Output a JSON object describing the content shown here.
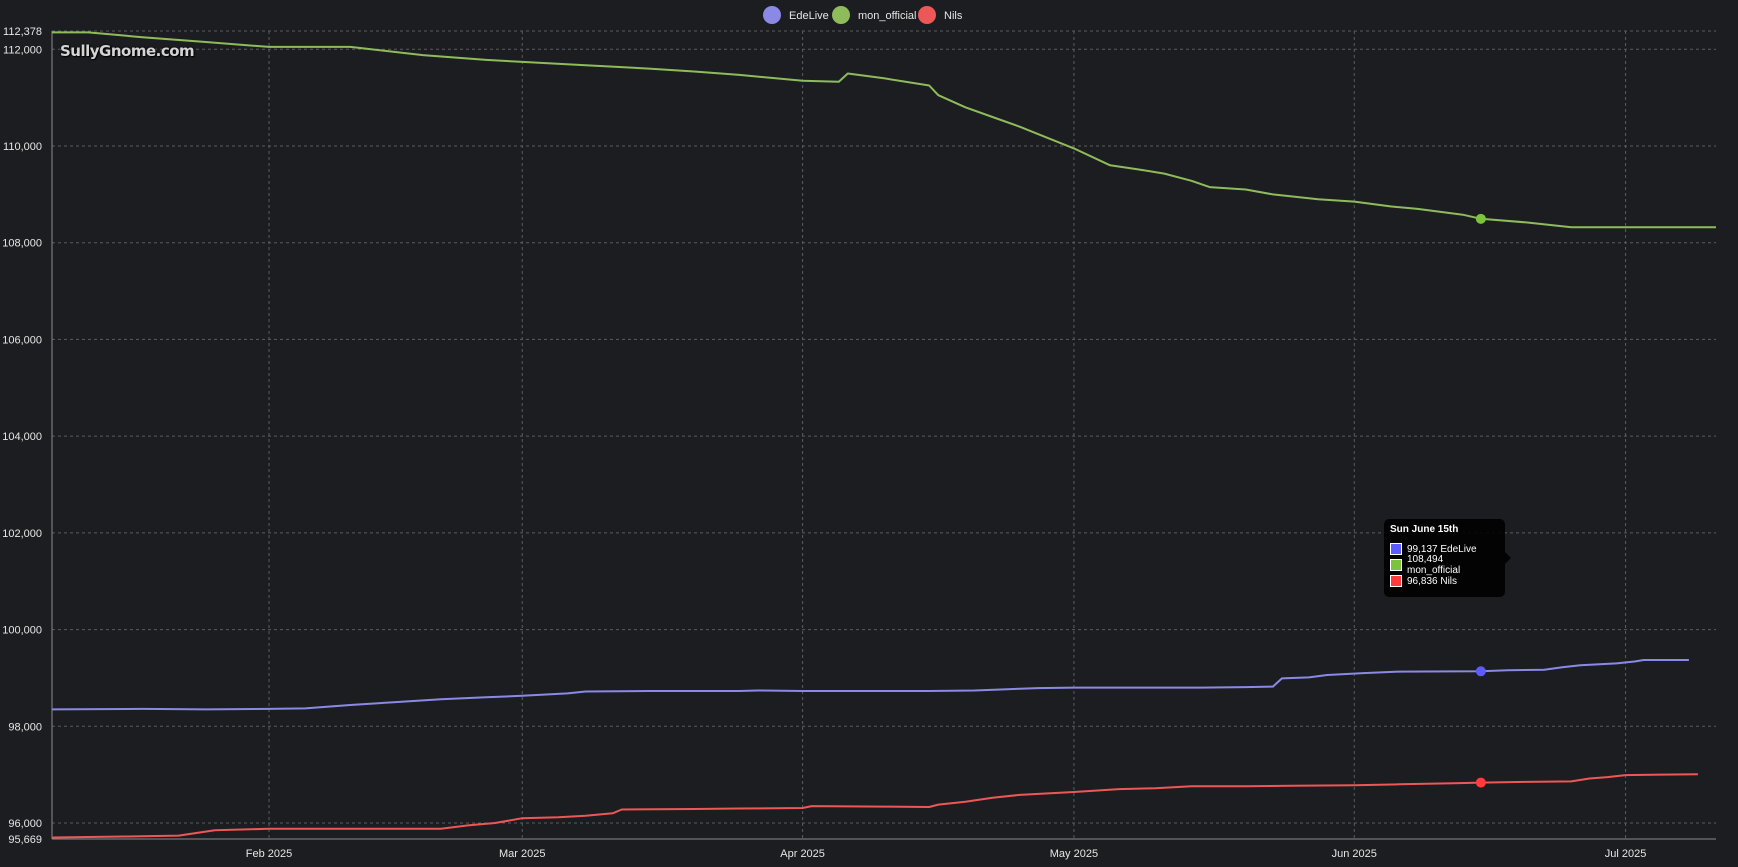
{
  "watermark": "SullyGnome.com",
  "legend": [
    {
      "label": "EdeLive",
      "color": "#8a8ae6"
    },
    {
      "label": "mon_official",
      "color": "#8fbc5a"
    },
    {
      "label": "Nils",
      "color": "#ee5757"
    }
  ],
  "tooltip": {
    "title": "Sun June 15th",
    "rows": [
      {
        "text": "99,137 EdeLive",
        "color": "#5b5bff"
      },
      {
        "text": "108,494 mon_official",
        "color": "#7cc43c"
      },
      {
        "text": "96,836 Nils",
        "color": "#ff3b3b"
      }
    ]
  },
  "chart_data": {
    "type": "line",
    "title": "",
    "xlabel": "",
    "ylabel": "",
    "ylim": [
      95669,
      112378
    ],
    "xlim": [
      "2025-01-08",
      "2025-07-11"
    ],
    "y_ticks": [
      {
        "value": 95669,
        "label": "95,669"
      },
      {
        "value": 96000,
        "label": "96,000"
      },
      {
        "value": 98000,
        "label": "98,000"
      },
      {
        "value": 100000,
        "label": "100,000"
      },
      {
        "value": 102000,
        "label": "102,000"
      },
      {
        "value": 104000,
        "label": "104,000"
      },
      {
        "value": 106000,
        "label": "106,000"
      },
      {
        "value": 108000,
        "label": "108,000"
      },
      {
        "value": 110000,
        "label": "110,000"
      },
      {
        "value": 112000,
        "label": "112,000"
      },
      {
        "value": 112378,
        "label": "112,378"
      }
    ],
    "x_ticks": [
      {
        "date": "2025-02-01",
        "label": "Feb 2025"
      },
      {
        "date": "2025-03-01",
        "label": "Mar 2025"
      },
      {
        "date": "2025-04-01",
        "label": "Apr 2025"
      },
      {
        "date": "2025-05-01",
        "label": "May 2025"
      },
      {
        "date": "2025-06-01",
        "label": "Jun 2025"
      },
      {
        "date": "2025-07-01",
        "label": "Jul 2025"
      }
    ],
    "grid": true,
    "legend_position": "top-center",
    "highlight": {
      "date": "2025-06-15"
    },
    "series": [
      {
        "name": "EdeLive",
        "color": "#8a8ae6",
        "points": [
          [
            "2025-01-08",
            98350
          ],
          [
            "2025-01-18",
            98360
          ],
          [
            "2025-01-25",
            98350
          ],
          [
            "2025-02-01",
            98360
          ],
          [
            "2025-02-05",
            98370
          ],
          [
            "2025-02-10",
            98440
          ],
          [
            "2025-02-15",
            98500
          ],
          [
            "2025-02-20",
            98560
          ],
          [
            "2025-02-25",
            98600
          ],
          [
            "2025-03-01",
            98630
          ],
          [
            "2025-03-06",
            98680
          ],
          [
            "2025-03-08",
            98720
          ],
          [
            "2025-03-15",
            98730
          ],
          [
            "2025-03-25",
            98730
          ],
          [
            "2025-03-27",
            98740
          ],
          [
            "2025-04-01",
            98730
          ],
          [
            "2025-04-15",
            98730
          ],
          [
            "2025-04-20",
            98740
          ],
          [
            "2025-04-27",
            98790
          ],
          [
            "2025-05-01",
            98800
          ],
          [
            "2025-05-15",
            98800
          ],
          [
            "2025-05-20",
            98810
          ],
          [
            "2025-05-23",
            98820
          ],
          [
            "2025-05-24",
            98990
          ],
          [
            "2025-05-27",
            99010
          ],
          [
            "2025-05-29",
            99060
          ],
          [
            "2025-06-02",
            99100
          ],
          [
            "2025-06-06",
            99130
          ],
          [
            "2025-06-15",
            99137
          ],
          [
            "2025-06-18",
            99160
          ],
          [
            "2025-06-22",
            99170
          ],
          [
            "2025-06-24",
            99220
          ],
          [
            "2025-06-26",
            99260
          ],
          [
            "2025-06-30",
            99300
          ],
          [
            "2025-07-02",
            99340
          ],
          [
            "2025-07-03",
            99370
          ],
          [
            "2025-07-08",
            99370
          ]
        ]
      },
      {
        "name": "mon_official",
        "color": "#8fbc5a",
        "points": [
          [
            "2025-01-08",
            112350
          ],
          [
            "2025-01-12",
            112350
          ],
          [
            "2025-01-18",
            112250
          ],
          [
            "2025-01-25",
            112150
          ],
          [
            "2025-02-01",
            112050
          ],
          [
            "2025-02-10",
            112050
          ],
          [
            "2025-02-18",
            111880
          ],
          [
            "2025-02-25",
            111780
          ],
          [
            "2025-03-01",
            111740
          ],
          [
            "2025-03-08",
            111670
          ],
          [
            "2025-03-15",
            111600
          ],
          [
            "2025-03-20",
            111540
          ],
          [
            "2025-03-25",
            111470
          ],
          [
            "2025-04-01",
            111350
          ],
          [
            "2025-04-05",
            111330
          ],
          [
            "2025-04-06",
            111500
          ],
          [
            "2025-04-10",
            111400
          ],
          [
            "2025-04-15",
            111250
          ],
          [
            "2025-04-16",
            111050
          ],
          [
            "2025-04-19",
            110800
          ],
          [
            "2025-04-22",
            110600
          ],
          [
            "2025-04-25",
            110400
          ],
          [
            "2025-04-27",
            110250
          ],
          [
            "2025-05-01",
            109950
          ],
          [
            "2025-05-05",
            109600
          ],
          [
            "2025-05-08",
            109520
          ],
          [
            "2025-05-11",
            109430
          ],
          [
            "2025-05-14",
            109280
          ],
          [
            "2025-05-16",
            109150
          ],
          [
            "2025-05-20",
            109100
          ],
          [
            "2025-05-23",
            109000
          ],
          [
            "2025-05-28",
            108900
          ],
          [
            "2025-06-01",
            108850
          ],
          [
            "2025-06-05",
            108750
          ],
          [
            "2025-06-08",
            108700
          ],
          [
            "2025-06-13",
            108580
          ],
          [
            "2025-06-15",
            108494
          ],
          [
            "2025-06-20",
            108420
          ],
          [
            "2025-06-25",
            108320
          ],
          [
            "2025-07-01",
            108320
          ],
          [
            "2025-07-11",
            108320
          ]
        ]
      },
      {
        "name": "Nils",
        "color": "#ee5757",
        "points": [
          [
            "2025-01-08",
            95700
          ],
          [
            "2025-01-16",
            95720
          ],
          [
            "2025-01-22",
            95740
          ],
          [
            "2025-01-26",
            95850
          ],
          [
            "2025-02-01",
            95880
          ],
          [
            "2025-02-10",
            95880
          ],
          [
            "2025-02-20",
            95880
          ],
          [
            "2025-02-23",
            95950
          ],
          [
            "2025-02-26",
            96000
          ],
          [
            "2025-03-01",
            96100
          ],
          [
            "2025-03-05",
            96120
          ],
          [
            "2025-03-08",
            96150
          ],
          [
            "2025-03-11",
            96200
          ],
          [
            "2025-03-12",
            96280
          ],
          [
            "2025-03-20",
            96290
          ],
          [
            "2025-03-25",
            96300
          ],
          [
            "2025-04-01",
            96310
          ],
          [
            "2025-04-02",
            96350
          ],
          [
            "2025-04-10",
            96340
          ],
          [
            "2025-04-15",
            96330
          ],
          [
            "2025-04-16",
            96380
          ],
          [
            "2025-04-19",
            96440
          ],
          [
            "2025-04-22",
            96520
          ],
          [
            "2025-04-25",
            96580
          ],
          [
            "2025-05-01",
            96640
          ],
          [
            "2025-05-06",
            96700
          ],
          [
            "2025-05-10",
            96720
          ],
          [
            "2025-05-14",
            96760
          ],
          [
            "2025-05-20",
            96760
          ],
          [
            "2025-05-25",
            96770
          ],
          [
            "2025-06-01",
            96780
          ],
          [
            "2025-06-06",
            96800
          ],
          [
            "2025-06-12",
            96820
          ],
          [
            "2025-06-15",
            96836
          ],
          [
            "2025-06-20",
            96850
          ],
          [
            "2025-06-25",
            96860
          ],
          [
            "2025-06-27",
            96920
          ],
          [
            "2025-06-29",
            96950
          ],
          [
            "2025-07-01",
            96990
          ],
          [
            "2025-07-05",
            97000
          ],
          [
            "2025-07-09",
            97010
          ]
        ]
      }
    ]
  }
}
